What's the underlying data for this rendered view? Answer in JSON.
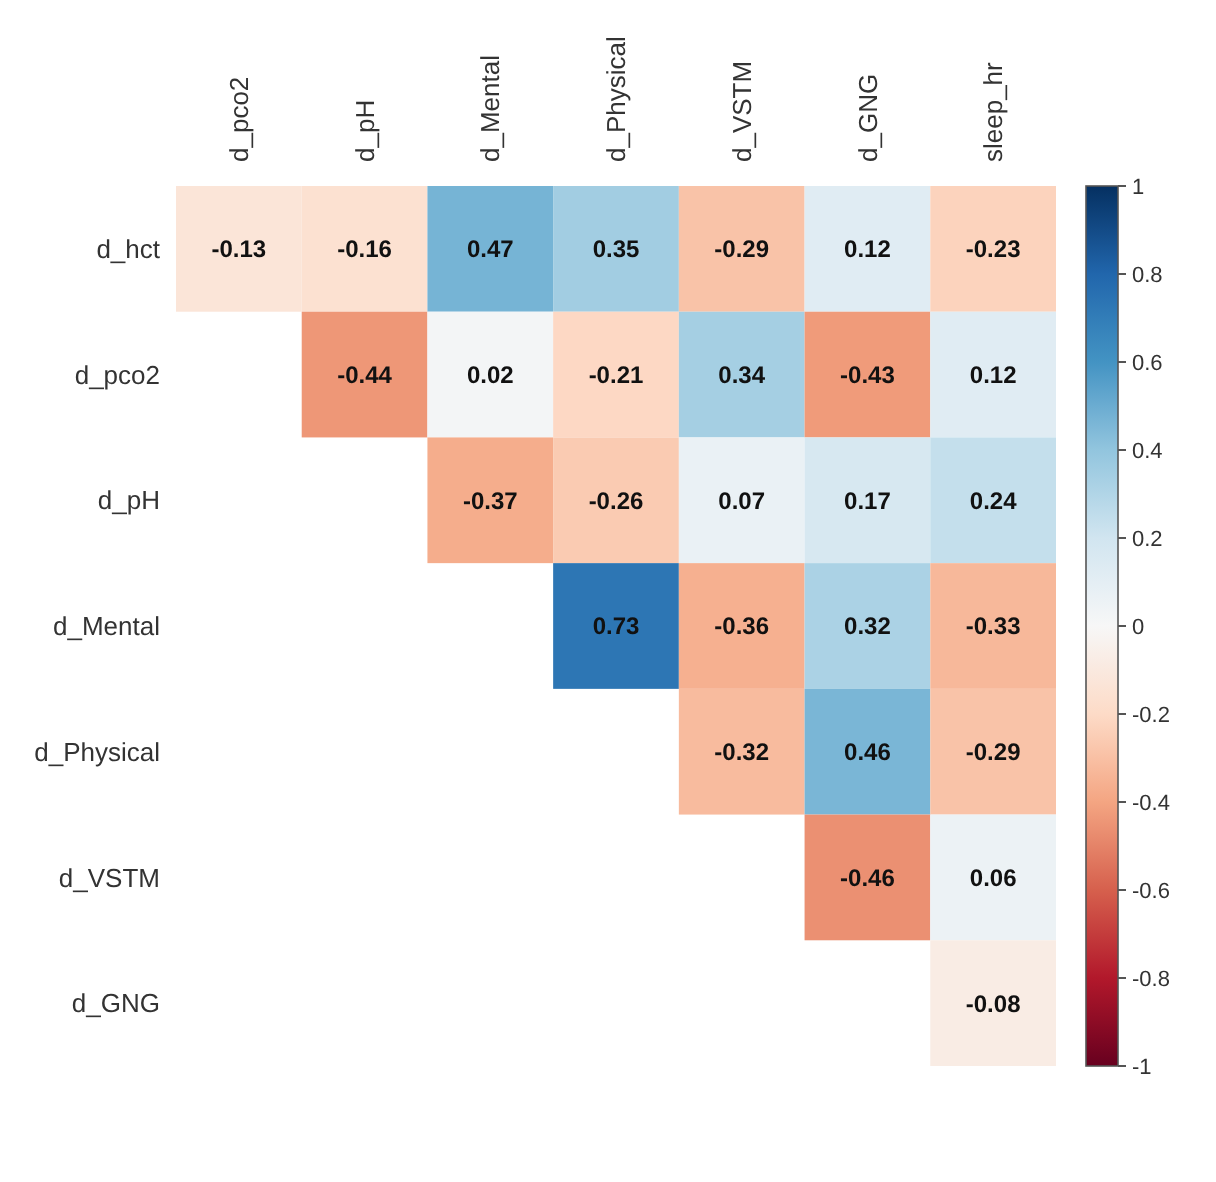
{
  "chart_data": {
    "type": "heatmap",
    "categories": [
      "d_pco2",
      "d_pH",
      "d_Mental",
      "d_Physical",
      "d_VSTM",
      "d_GNG",
      "sleep_hr"
    ],
    "y_categories": [
      "d_hct",
      "d_pco2",
      "d_pH",
      "d_Mental",
      "d_Physical",
      "d_VSTM",
      "d_GNG"
    ],
    "cells": [
      [
        -0.13,
        -0.16,
        0.47,
        0.35,
        -0.29,
        0.12,
        -0.23
      ],
      [
        null,
        -0.44,
        0.02,
        -0.21,
        0.34,
        -0.43,
        0.12
      ],
      [
        null,
        null,
        -0.37,
        -0.26,
        0.07,
        0.17,
        0.24
      ],
      [
        null,
        null,
        null,
        0.73,
        -0.36,
        0.32,
        -0.33
      ],
      [
        null,
        null,
        null,
        null,
        -0.32,
        0.46,
        -0.29
      ],
      [
        null,
        null,
        null,
        null,
        null,
        -0.46,
        0.06
      ],
      [
        null,
        null,
        null,
        null,
        null,
        null,
        -0.08
      ]
    ],
    "clim": [
      -1,
      1
    ],
    "cticks": [
      -1,
      -0.8,
      -0.6,
      -0.4,
      -0.2,
      0,
      0.2,
      0.4,
      0.6,
      0.8,
      1
    ],
    "data_labels": true
  }
}
